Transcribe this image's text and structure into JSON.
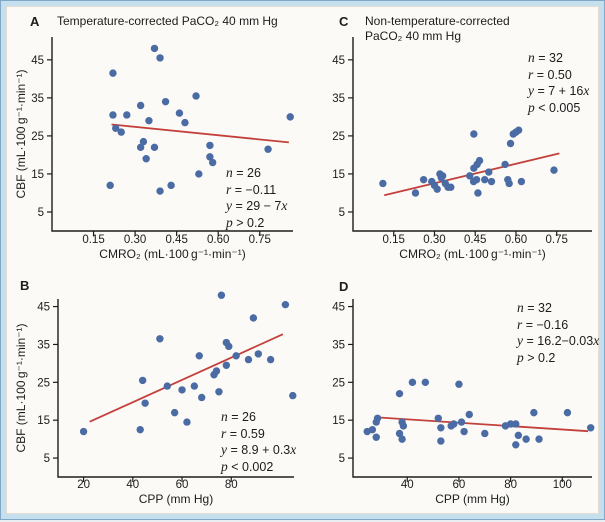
{
  "figure": {
    "description": "Four-panel scatter figure relating CBF to CMRO2 and CPP under temperature-corrected and non-temperature-corrected PaCO2 management"
  },
  "colors": {
    "point": "#4a6ba3",
    "trendline": "#c4403c",
    "axis": "#1c1c1c",
    "panel_bg": "#fbfaf6",
    "frame_band": "#c5dfef",
    "frame_edge": "#7fa9c7"
  },
  "chart_data": [
    {
      "panel": "A",
      "type": "scatter",
      "title": "Temperature-corrected PaCO₂ 40 mm Hg",
      "xlabel": "CMRO₂ (mL·100 g⁻¹·min⁻¹)",
      "ylabel": "CBF (mL·100 g⁻¹·min⁻¹)",
      "x_tick_labels": [
        "0.15",
        "0.30",
        "0.45",
        "0.60",
        "0.75"
      ],
      "x_tick_values": [
        0.15,
        0.3,
        0.45,
        0.6,
        0.75
      ],
      "y_ticks": [
        5,
        15,
        25,
        35,
        45
      ],
      "x_domain": [
        0,
        0.87
      ],
      "y_domain": [
        0,
        51
      ],
      "grid": false,
      "points": [
        [
          0.37,
          48
        ],
        [
          0.39,
          45.5
        ],
        [
          0.22,
          41.5
        ],
        [
          0.52,
          35.5
        ],
        [
          0.41,
          34
        ],
        [
          0.32,
          33
        ],
        [
          0.46,
          31
        ],
        [
          0.22,
          30.5
        ],
        [
          0.27,
          30.5
        ],
        [
          0.86,
          30
        ],
        [
          0.35,
          29
        ],
        [
          0.48,
          28.5
        ],
        [
          0.23,
          27
        ],
        [
          0.25,
          26
        ],
        [
          0.33,
          23.5
        ],
        [
          0.32,
          22
        ],
        [
          0.37,
          22
        ],
        [
          0.57,
          22.5
        ],
        [
          0.78,
          21.5
        ],
        [
          0.34,
          19
        ],
        [
          0.57,
          19.5
        ],
        [
          0.58,
          18
        ],
        [
          0.53,
          15
        ],
        [
          0.21,
          12
        ],
        [
          0.43,
          12
        ],
        [
          0.39,
          10.5
        ]
      ],
      "trendline": {
        "x1": 0.215,
        "y1": 28,
        "x2": 0.855,
        "y2": 23.3
      },
      "regression_label": "y = 29 - 7x",
      "stats": [
        [
          "n",
          " = 26",
          ""
        ],
        [
          "r",
          " = −0.11",
          ""
        ],
        [
          "y",
          " = 29 − 7",
          "x"
        ],
        [
          "p",
          " > 0.2",
          ""
        ]
      ]
    },
    {
      "panel": "C",
      "type": "scatter",
      "title": "Non-temperature-corrected\nPaCO₂ 40 mm Hg",
      "xlabel": "CMRO₂ (mL·100 g⁻¹·min⁻¹)",
      "ylabel": "",
      "x_tick_labels": [
        "0.15",
        "0.30",
        "0.45",
        "0.60",
        "0.75"
      ],
      "x_tick_values": [
        0.15,
        0.3,
        0.45,
        0.6,
        0.75
      ],
      "y_ticks": [
        5,
        15,
        25,
        35,
        45
      ],
      "x_domain": [
        0,
        0.88
      ],
      "y_domain": [
        0,
        51
      ],
      "grid": false,
      "points": [
        [
          0.11,
          12.5
        ],
        [
          0.23,
          10
        ],
        [
          0.26,
          13.5
        ],
        [
          0.29,
          13
        ],
        [
          0.3,
          12
        ],
        [
          0.31,
          11
        ],
        [
          0.32,
          15
        ],
        [
          0.325,
          14
        ],
        [
          0.33,
          14.5
        ],
        [
          0.34,
          12.5
        ],
        [
          0.35,
          11.5
        ],
        [
          0.36,
          11.5
        ],
        [
          0.43,
          14.5
        ],
        [
          0.445,
          25.5
        ],
        [
          0.445,
          16.5
        ],
        [
          0.457,
          17.5
        ],
        [
          0.466,
          18.5
        ],
        [
          0.444,
          13
        ],
        [
          0.455,
          13.5
        ],
        [
          0.46,
          10
        ],
        [
          0.485,
          13.5
        ],
        [
          0.5,
          15.5
        ],
        [
          0.51,
          13
        ],
        [
          0.56,
          17.5
        ],
        [
          0.57,
          13.5
        ],
        [
          0.575,
          12.5
        ],
        [
          0.58,
          23
        ],
        [
          0.59,
          25.5
        ],
        [
          0.6,
          26
        ],
        [
          0.61,
          26.5
        ],
        [
          0.62,
          13
        ],
        [
          0.74,
          16
        ]
      ],
      "trendline": {
        "x1": 0.115,
        "y1": 9.4,
        "x2": 0.76,
        "y2": 20.4
      },
      "regression_label": "y = 7 + 16x",
      "stats": [
        [
          "n",
          " = 32",
          ""
        ],
        [
          "r",
          " = 0.50",
          ""
        ],
        [
          "y",
          " = 7 + 16",
          "x"
        ],
        [
          "p",
          " < 0.005",
          ""
        ]
      ]
    },
    {
      "panel": "B",
      "type": "scatter",
      "title": "",
      "xlabel": "CPP (mm Hg)",
      "ylabel": "CBF (mL·100 g⁻¹·min⁻¹)",
      "x_tick_labels": [
        "20",
        "40",
        "60",
        "80"
      ],
      "x_tick_values": [
        20,
        40,
        60,
        80
      ],
      "y_ticks": [
        5,
        15,
        25,
        35,
        45
      ],
      "x_domain": [
        9.6,
        105.5
      ],
      "y_domain": [
        0,
        47
      ],
      "grid": false,
      "points": [
        [
          20,
          12
        ],
        [
          43,
          12.5
        ],
        [
          44,
          25.5
        ],
        [
          45,
          19.5
        ],
        [
          51,
          36.5
        ],
        [
          54,
          24
        ],
        [
          57,
          17
        ],
        [
          60,
          23
        ],
        [
          62,
          14.5
        ],
        [
          65,
          24
        ],
        [
          67,
          32
        ],
        [
          68,
          21
        ],
        [
          73,
          27
        ],
        [
          74,
          28
        ],
        [
          75,
          22.5
        ],
        [
          76,
          48
        ],
        [
          78,
          29.5
        ],
        [
          78,
          35.5
        ],
        [
          79,
          34.5
        ],
        [
          82,
          32
        ],
        [
          87,
          31
        ],
        [
          89,
          42
        ],
        [
          91,
          32.5
        ],
        [
          96,
          31
        ],
        [
          102,
          45.5
        ],
        [
          105,
          21.5
        ]
      ],
      "trendline": {
        "x1": 22.5,
        "y1": 14.6,
        "x2": 101,
        "y2": 37.7
      },
      "regression_label": "y = 8.9 + 0.3x",
      "stats": [
        [
          "n",
          " = 26",
          ""
        ],
        [
          "r",
          " = 0.59",
          ""
        ],
        [
          "y",
          " = 8.9 + 0.3",
          "x"
        ],
        [
          "p",
          " < 0.002",
          ""
        ]
      ]
    },
    {
      "panel": "D",
      "type": "scatter",
      "title": "",
      "xlabel": "CPP (mm Hg)",
      "ylabel": "",
      "x_tick_labels": [
        "40",
        "60",
        "80",
        "100"
      ],
      "x_tick_values": [
        40,
        60,
        80,
        100
      ],
      "y_ticks": [
        5,
        15,
        25,
        35,
        45
      ],
      "x_domain": [
        19,
        111.5
      ],
      "y_domain": [
        0,
        47
      ],
      "grid": false,
      "points": [
        [
          24.5,
          12
        ],
        [
          26.5,
          12.5
        ],
        [
          28,
          14.5
        ],
        [
          28.5,
          15.5
        ],
        [
          28,
          10.5
        ],
        [
          37,
          22
        ],
        [
          37,
          11.5
        ],
        [
          38,
          14.5
        ],
        [
          38.5,
          13.5
        ],
        [
          38,
          10
        ],
        [
          42,
          25
        ],
        [
          47,
          25
        ],
        [
          52,
          15.5
        ],
        [
          53,
          13
        ],
        [
          53,
          9.5
        ],
        [
          57,
          13.5
        ],
        [
          58,
          14
        ],
        [
          60,
          24.5
        ],
        [
          61,
          14.5
        ],
        [
          62,
          12
        ],
        [
          64,
          16.5
        ],
        [
          70,
          11.5
        ],
        [
          78,
          13.5
        ],
        [
          80,
          14
        ],
        [
          82,
          14
        ],
        [
          82,
          8.5
        ],
        [
          83,
          11
        ],
        [
          86,
          10
        ],
        [
          89,
          17
        ],
        [
          91,
          10
        ],
        [
          102,
          17
        ],
        [
          111,
          13
        ]
      ],
      "trendline": {
        "x1": 29.5,
        "y1": 15.7,
        "x2": 110,
        "y2": 12.1
      },
      "regression_label": "y = 16.2 - 0.03x",
      "stats": [
        [
          "n",
          " = 32",
          ""
        ],
        [
          "r",
          " = −0.16",
          ""
        ],
        [
          "y",
          " = 16.2−0.03",
          "x"
        ],
        [
          "p",
          " > 0.2",
          ""
        ]
      ]
    }
  ]
}
